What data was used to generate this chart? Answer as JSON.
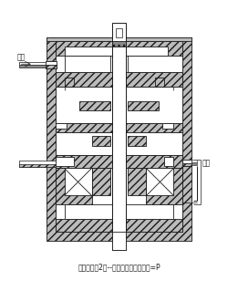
{
  "title": "工作状况（2）--开阀终了阶段工作力=P",
  "label_paiq": "排气",
  "label_jinq": "进气",
  "bg_color": "#ffffff",
  "line_color": "#1a1a1a",
  "fig_width": 2.61,
  "fig_height": 3.19,
  "dpi": 100
}
